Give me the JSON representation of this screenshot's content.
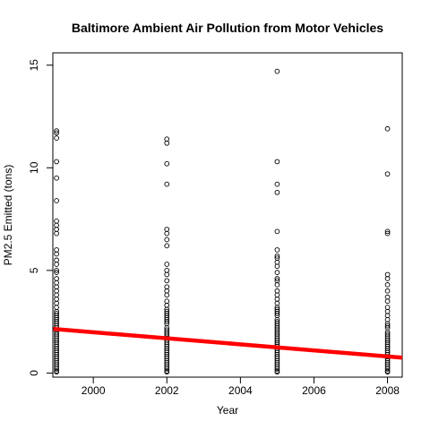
{
  "chart_data": {
    "type": "scatter",
    "title": "Baltimore Ambient Air Pollution from Motor Vehicles",
    "xlabel": "Year",
    "ylabel": "PM2.5 Emitted (tons)",
    "xlim": [
      1998.9,
      2008.4
    ],
    "ylim": [
      -0.2,
      15.6
    ],
    "x_ticks": [
      2000,
      2002,
      2004,
      2006,
      2008
    ],
    "y_ticks": [
      0,
      5,
      10,
      15
    ],
    "grid": false,
    "series": [
      {
        "type": "points",
        "color": "#000000",
        "points": [
          {
            "x": 1999,
            "values": [
              11.8,
              11.7,
              11.45,
              10.3,
              9.5,
              8.4,
              7.4,
              7.2,
              7.0,
              6.8,
              6.0,
              5.8,
              5.5,
              5.3,
              5.0,
              4.9,
              4.6,
              4.4,
              4.2,
              4.0,
              3.8,
              3.6,
              3.4,
              3.2,
              3.0,
              2.9,
              2.8,
              2.7,
              2.6,
              2.5,
              2.4,
              2.3,
              2.2,
              2.1,
              2.0,
              1.9,
              1.8,
              1.7,
              1.6,
              1.5,
              1.4,
              1.3,
              1.2,
              1.1,
              1.0,
              0.9,
              0.8,
              0.7,
              0.6,
              0.5,
              0.4,
              0.3,
              0.2,
              0.1,
              0.05
            ]
          },
          {
            "x": 2002,
            "values": [
              11.4,
              11.2,
              10.2,
              9.2,
              7.0,
              6.8,
              6.5,
              6.2,
              5.3,
              5.0,
              4.8,
              4.5,
              4.2,
              4.0,
              3.8,
              3.5,
              3.3,
              3.1,
              3.0,
              2.9,
              2.8,
              2.7,
              2.6,
              2.5,
              2.4,
              2.2,
              2.1,
              2.0,
              1.9,
              1.8,
              1.7,
              1.6,
              1.5,
              1.4,
              1.3,
              1.2,
              1.1,
              1.0,
              0.9,
              0.8,
              0.7,
              0.6,
              0.5,
              0.4,
              0.3,
              0.2,
              0.1,
              0.05
            ]
          },
          {
            "x": 2005,
            "values": [
              14.7,
              10.3,
              9.2,
              8.8,
              6.9,
              6.0,
              5.7,
              5.6,
              5.4,
              5.2,
              4.9,
              4.6,
              4.5,
              4.3,
              4.0,
              3.8,
              3.6,
              3.4,
              3.2,
              3.1,
              3.0,
              2.9,
              2.8,
              2.6,
              2.5,
              2.4,
              2.3,
              2.2,
              2.1,
              2.0,
              1.9,
              1.8,
              1.7,
              1.6,
              1.5,
              1.4,
              1.3,
              1.2,
              1.1,
              1.0,
              0.9,
              0.8,
              0.7,
              0.6,
              0.5,
              0.4,
              0.3,
              0.2,
              0.1,
              0.05
            ]
          },
          {
            "x": 2008,
            "values": [
              11.9,
              9.7,
              6.9,
              6.8,
              4.8,
              4.6,
              4.3,
              4.0,
              3.7,
              3.5,
              3.2,
              3.0,
              2.8,
              2.6,
              2.4,
              2.3,
              2.2,
              2.0,
              1.9,
              1.8,
              1.7,
              1.6,
              1.5,
              1.4,
              1.3,
              1.2,
              1.1,
              1.0,
              0.9,
              0.8,
              0.7,
              0.6,
              0.5,
              0.4,
              0.3,
              0.2,
              0.1,
              0.05
            ]
          }
        ]
      },
      {
        "type": "line",
        "color": "#ff0000",
        "x": [
          1998.9,
          2008.4
        ],
        "y": [
          2.15,
          0.75
        ]
      }
    ]
  }
}
